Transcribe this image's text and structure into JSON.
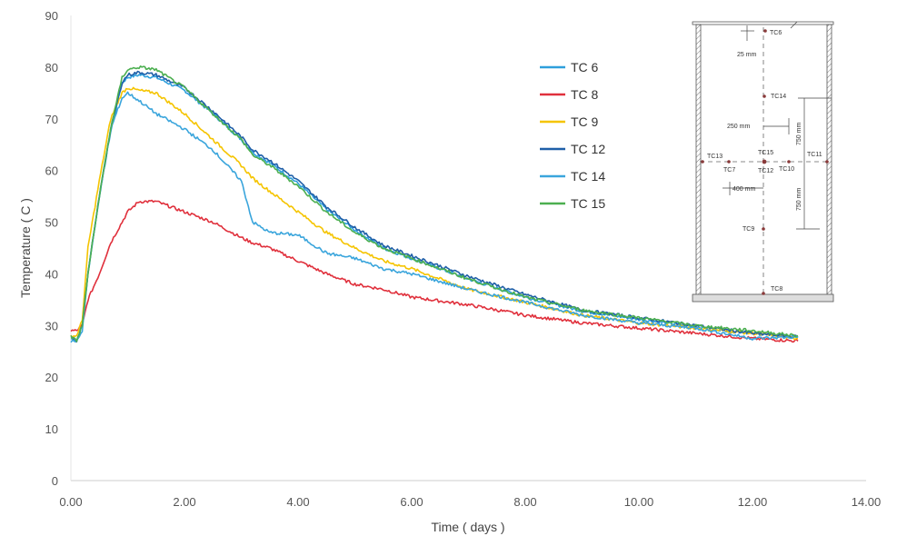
{
  "chart_data": {
    "type": "line",
    "title": "",
    "xlabel": "Time ( days )",
    "ylabel": "Temperature ( C )",
    "xlim": [
      0,
      14
    ],
    "ylim": [
      0,
      90
    ],
    "xticks": [
      "0.00",
      "2.00",
      "4.00",
      "6.00",
      "8.00",
      "10.00",
      "12.00",
      "14.00"
    ],
    "yticks": [
      "0",
      "10",
      "20",
      "30",
      "40",
      "50",
      "60",
      "70",
      "80",
      "90"
    ],
    "grid": false,
    "legend_position": "top-right",
    "x": [
      0,
      0.1,
      0.2,
      0.3,
      0.5,
      0.7,
      0.9,
      1.0,
      1.2,
      1.5,
      2,
      2.5,
      3,
      3.2,
      3.5,
      4,
      4.5,
      5,
      5.5,
      6,
      7,
      8,
      9,
      10,
      11,
      12,
      12.8
    ],
    "series": [
      {
        "name": "TC 6",
        "color": "#2e9fdc",
        "values": [
          27.5,
          27,
          30,
          40,
          55,
          67.5,
          77,
          78,
          78.5,
          78,
          75.5,
          71,
          66,
          63.5,
          61.5,
          57.5,
          52.5,
          48.5,
          45,
          43,
          39,
          35.5,
          32.8,
          31.2,
          29.8,
          28.5,
          27.8
        ]
      },
      {
        "name": "TC 8",
        "color": "#e0303c",
        "values": [
          29,
          29,
          30,
          35,
          40,
          46,
          50,
          52,
          54,
          54,
          52,
          50,
          47,
          46,
          45,
          42.5,
          40,
          38,
          37,
          35.5,
          34,
          32,
          30.5,
          29.5,
          28.5,
          27.5,
          27
        ]
      },
      {
        "name": "TC 9",
        "color": "#f5c400",
        "values": [
          28,
          28,
          31,
          45,
          58,
          70,
          75,
          76,
          75.5,
          75,
          71,
          66,
          61,
          58.5,
          56,
          52,
          48,
          45,
          42.5,
          41,
          37,
          34.5,
          32,
          30.5,
          29.5,
          28.5,
          27.5
        ]
      },
      {
        "name": "TC 12",
        "color": "#1f5fa8",
        "values": [
          28,
          27,
          30,
          40,
          55,
          68,
          77,
          78.5,
          79,
          78.5,
          76,
          71.5,
          66.5,
          64,
          62,
          58,
          53,
          49,
          45.5,
          43.5,
          39.5,
          36,
          33,
          31.5,
          30,
          28.5,
          27.8
        ]
      },
      {
        "name": "TC 14",
        "color": "#3aa5dc",
        "values": [
          27,
          27,
          29,
          40,
          55,
          68,
          74,
          75,
          73.5,
          71,
          68,
          64,
          58,
          50,
          48,
          47.5,
          44,
          43,
          41,
          40,
          37,
          34.5,
          32,
          30.5,
          29.5,
          27.5,
          27.8
        ]
      },
      {
        "name": "TC 15",
        "color": "#4caf50",
        "values": [
          28,
          27,
          30,
          40,
          55,
          68,
          78,
          79.5,
          80,
          79.5,
          76,
          71,
          66,
          63,
          61,
          57,
          52,
          48,
          45,
          43,
          39,
          35.5,
          33,
          31.5,
          30,
          29,
          28
        ]
      }
    ]
  },
  "diagram": {
    "labels": [
      "TC6",
      "TC14",
      "TC15",
      "TC13",
      "TC7",
      "TC12",
      "TC10",
      "TC11",
      "TC9",
      "TC8"
    ],
    "dims": [
      "25 mm",
      "250 mm",
      "750 mm",
      "400 mm",
      "750 mm"
    ]
  }
}
